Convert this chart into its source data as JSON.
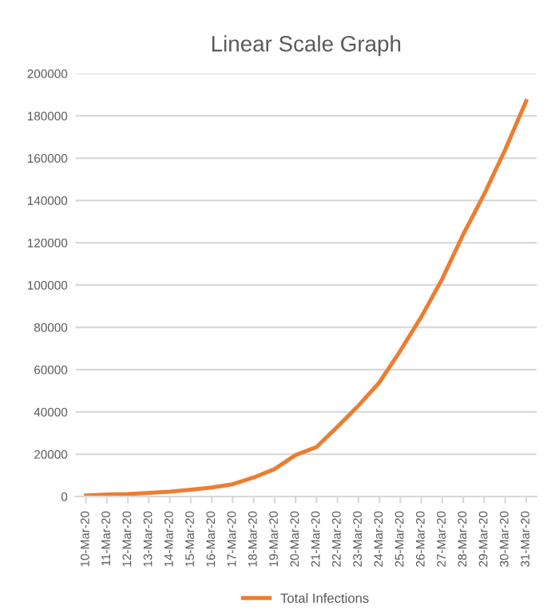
{
  "chart_data": {
    "type": "line",
    "title": "Linear Scale Graph",
    "categories": [
      "10-Mar-20",
      "11-Mar-20",
      "12-Mar-20",
      "13-Mar-20",
      "14-Mar-20",
      "15-Mar-20",
      "16-Mar-20",
      "17-Mar-20",
      "18-Mar-20",
      "19-Mar-20",
      "20-Mar-20",
      "21-Mar-20",
      "22-Mar-20",
      "23-Mar-20",
      "24-Mar-20",
      "25-Mar-20",
      "26-Mar-20",
      "27-Mar-20",
      "28-Mar-20",
      "29-Mar-20",
      "30-Mar-20",
      "31-Mar-20"
    ],
    "series": [
      {
        "name": "Total Infections",
        "color": "#ed7d31",
        "values": [
          500,
          1000,
          1200,
          1700,
          2300,
          3200,
          4300,
          5800,
          9000,
          13000,
          19600,
          23400,
          33000,
          43000,
          54000,
          69000,
          85000,
          103000,
          124000,
          143000,
          164000,
          187000
        ]
      }
    ],
    "ylim": [
      0,
      200000
    ],
    "yticks": [
      0,
      20000,
      40000,
      60000,
      80000,
      100000,
      120000,
      140000,
      160000,
      180000,
      200000
    ],
    "grid": "y",
    "legend": "bottom",
    "marker": "none",
    "line_style": "solid"
  }
}
